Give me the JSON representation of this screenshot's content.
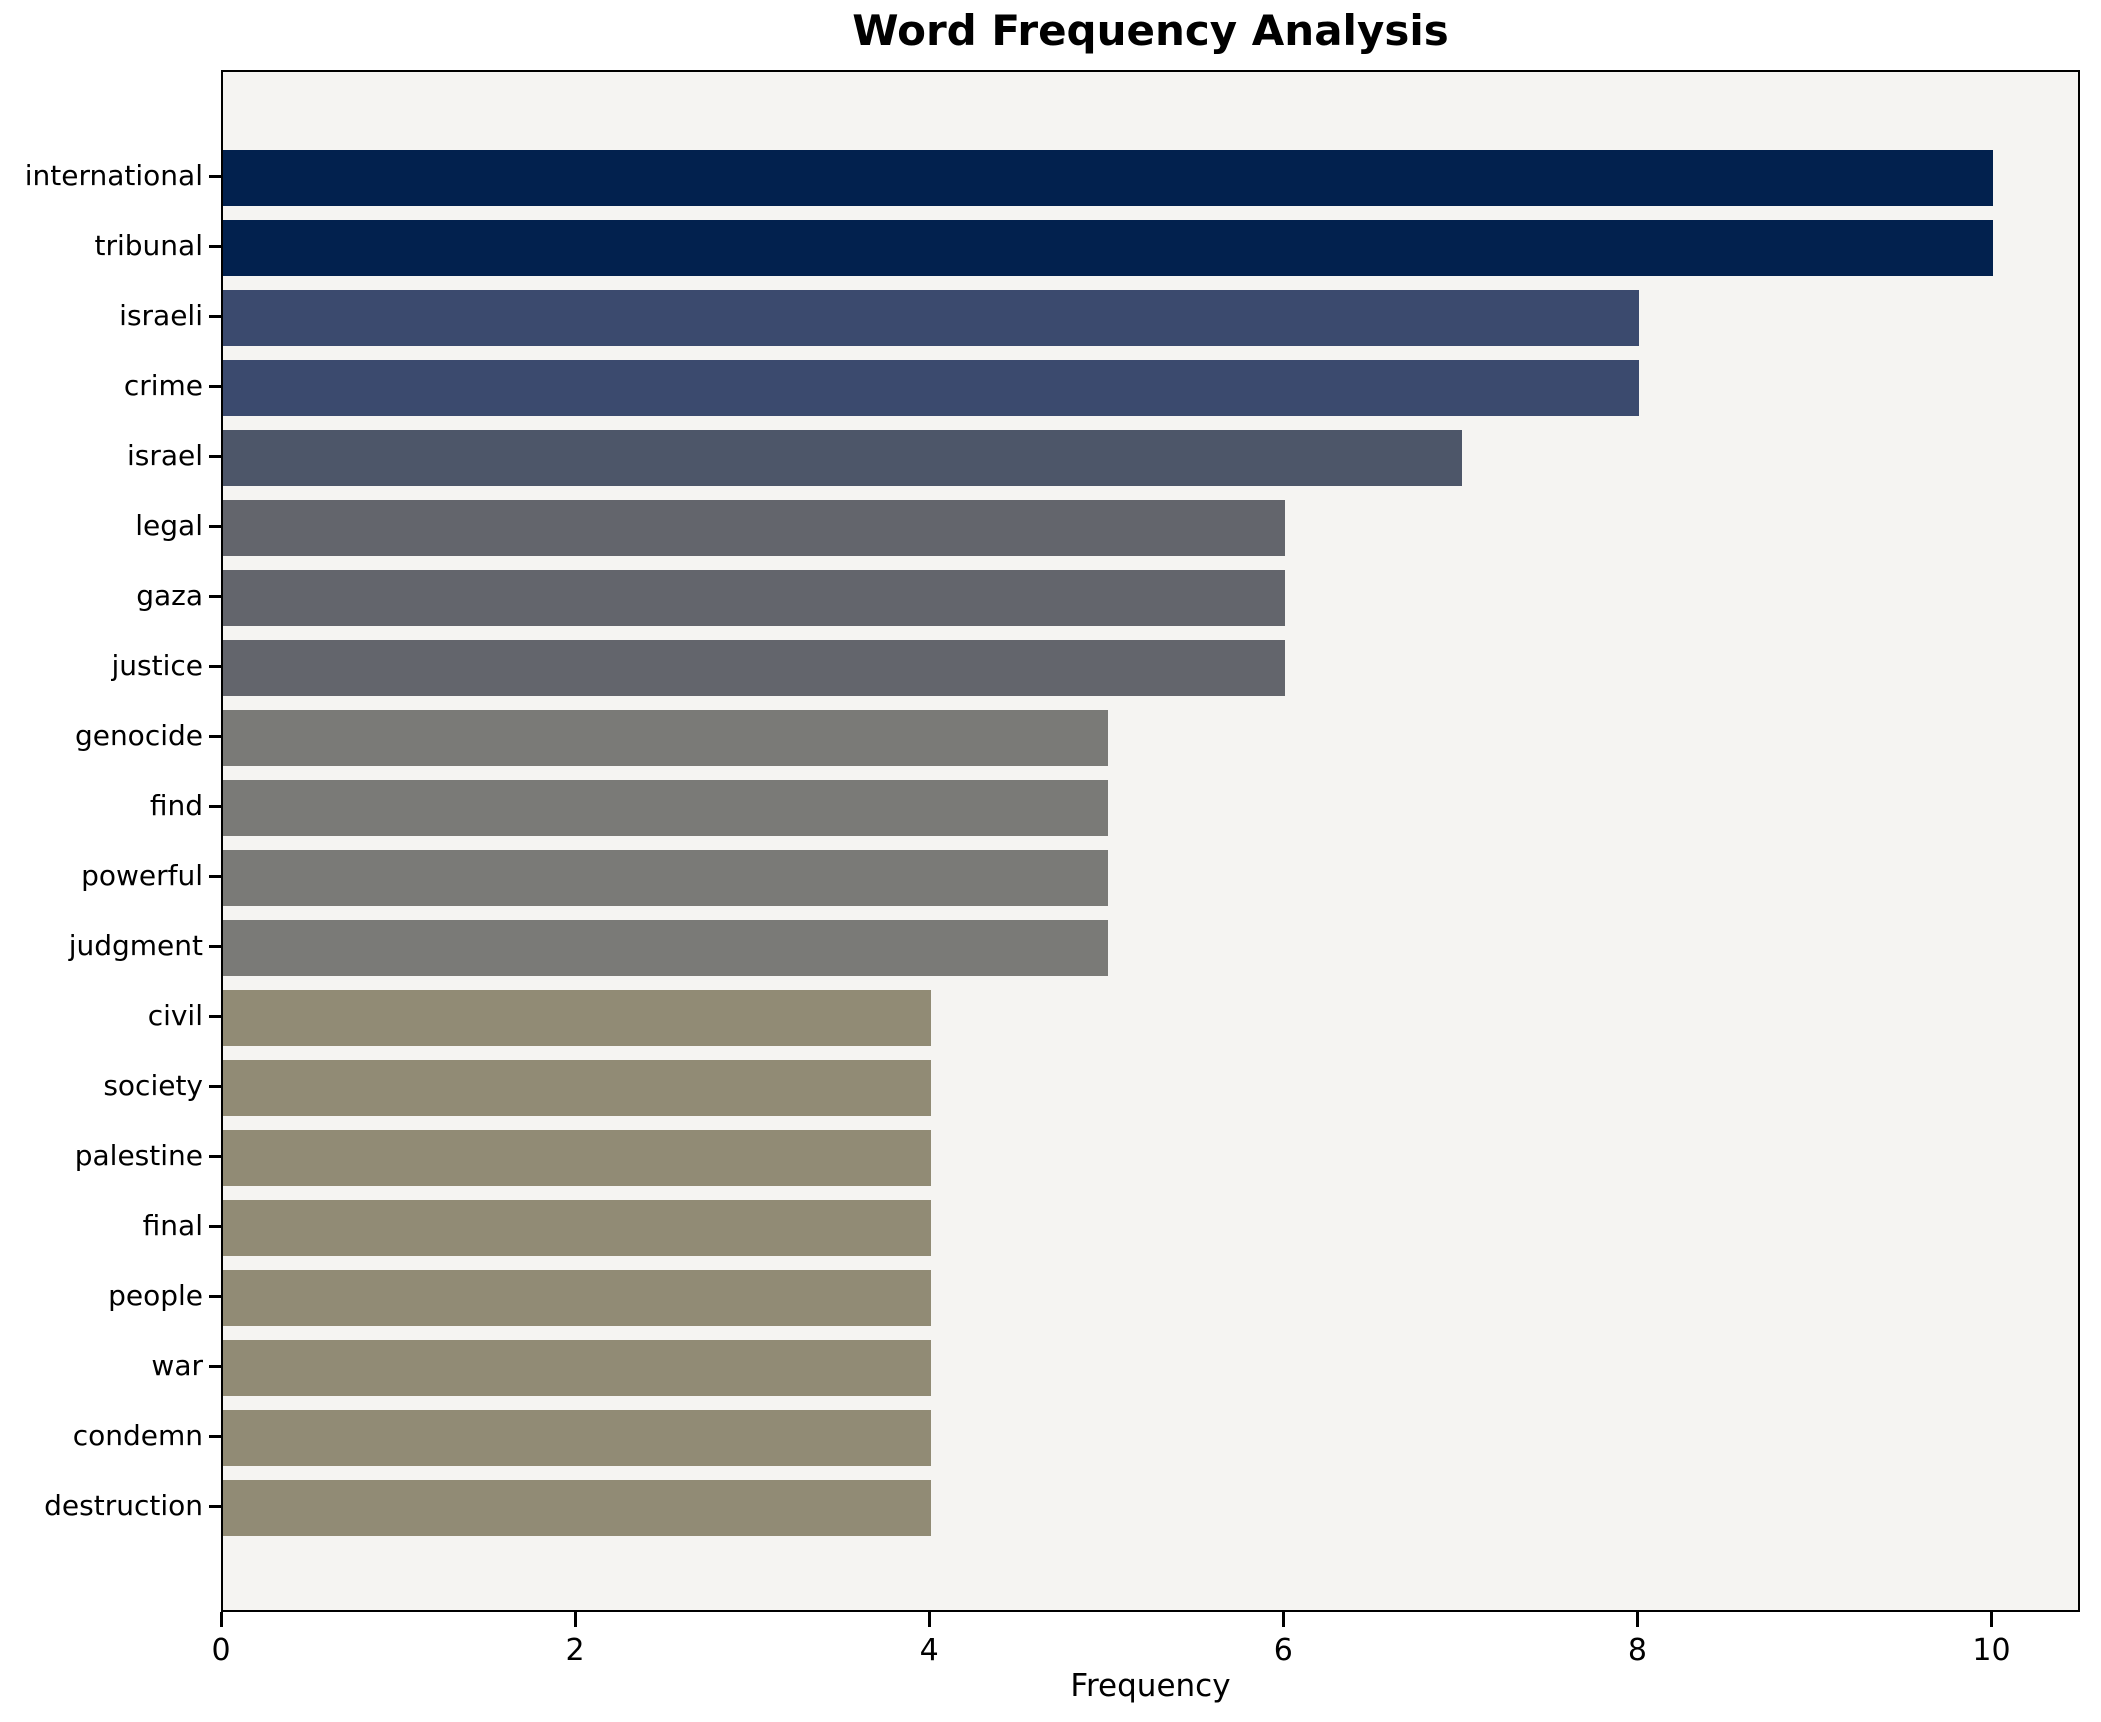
{
  "title": "Word Frequency Analysis",
  "chart_data": {
    "type": "bar",
    "orientation": "horizontal",
    "title": "Word Frequency Analysis",
    "xlabel": "Frequency",
    "ylabel": "",
    "categories": [
      "international",
      "tribunal",
      "israeli",
      "crime",
      "israel",
      "legal",
      "gaza",
      "justice",
      "genocide",
      "find",
      "powerful",
      "judgment",
      "civil",
      "society",
      "palestine",
      "final",
      "people",
      "war",
      "condemn",
      "destruction"
    ],
    "values": [
      10,
      10,
      8,
      8,
      7,
      6,
      6,
      6,
      5,
      5,
      5,
      5,
      4,
      4,
      4,
      4,
      4,
      4,
      4,
      4
    ],
    "bar_colors": [
      "#02214e",
      "#02214e",
      "#3b4a6e",
      "#3b4a6e",
      "#4d5669",
      "#63656c",
      "#63656c",
      "#63656c",
      "#7a7a77",
      "#7a7a77",
      "#7a7a77",
      "#7a7a77",
      "#918b75",
      "#918b75",
      "#918b75",
      "#918b75",
      "#918b75",
      "#918b75",
      "#918b75",
      "#918b75"
    ],
    "xlim": [
      0,
      10.5
    ],
    "xticks": [
      0,
      2,
      4,
      6,
      8,
      10
    ],
    "grid": false,
    "legend": "none",
    "colormap": "cividis",
    "plot_background": "#f5f4f2",
    "figure_background": "#ffffff",
    "spine_color": "#000000"
  }
}
